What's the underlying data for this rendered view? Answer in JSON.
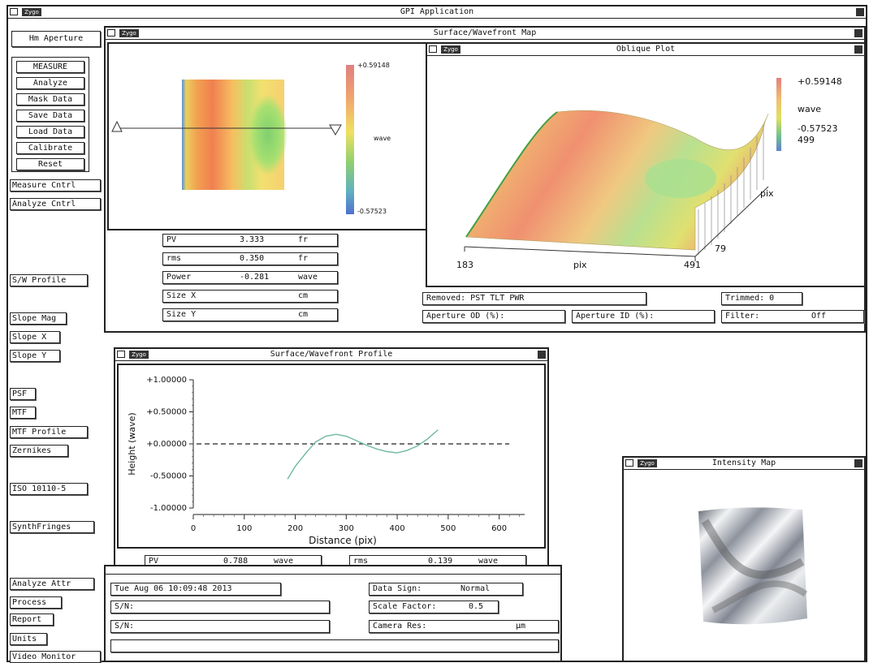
{
  "app": {
    "title": "GPI Application",
    "logo": "Zygo"
  },
  "left_panel": {
    "aperture_button": "Hm Aperture",
    "measure_group": [
      "MEASURE",
      "Analyze",
      "Mask Data",
      "Save Data",
      "Load Data",
      "Calibrate",
      "Reset"
    ],
    "control_buttons": [
      "Measure Cntrl",
      "Analyze Cntrl"
    ],
    "sw_profile": "S/W Profile",
    "slope_buttons": [
      "Slope Mag",
      "Slope X",
      "Slope Y"
    ],
    "analysis_buttons": [
      "PSF",
      "MTF",
      "MTF Profile",
      "Zernikes"
    ],
    "iso_button": "ISO 10110-5",
    "synth_button": "SynthFringes",
    "bottom_buttons": [
      "Analyze Attr",
      "Process",
      "Report",
      "Units",
      "Video Monitor"
    ]
  },
  "surface_map": {
    "title": "Surface/Wavefront Map",
    "scale_max": "+0.59148",
    "scale_min": "-0.57523",
    "scale_unit": "wave",
    "stats": [
      {
        "label": "PV",
        "value": "3.333",
        "unit": "fr"
      },
      {
        "label": "rms",
        "value": "0.350",
        "unit": "fr"
      },
      {
        "label": "Power",
        "value": "-0.281",
        "unit": "wave"
      },
      {
        "label": "Size X",
        "value": "",
        "unit": "cm"
      },
      {
        "label": "Size Y",
        "value": "",
        "unit": "cm"
      }
    ],
    "removed": "Removed: PST TLT PWR",
    "trimmed": "Trimmed:  0",
    "aperture_od": "Aperture OD (%):",
    "aperture_id": "Aperture ID (%):",
    "filter_label": "Filter:",
    "filter_value": "Off"
  },
  "oblique_plot": {
    "title": "Oblique Plot",
    "scale_max": "+0.59148",
    "scale_unit": "wave",
    "scale_min": "-0.57523",
    "y_max": "499",
    "y_axis_label": "pix",
    "y_min": "79",
    "x_min": "183",
    "x_axis_label": "pix",
    "x_max": "491"
  },
  "profile": {
    "title": "Surface/Wavefront Profile",
    "y_axis_label": "Height (wave)",
    "x_axis_label": "Distance (pix)",
    "y_ticks": [
      "+1.00000",
      "+0.50000",
      "+0.00000",
      "-0.50000",
      "-1.00000"
    ],
    "x_ticks": [
      "0",
      "100",
      "200",
      "300",
      "400",
      "500",
      "600"
    ],
    "pv_label": "PV",
    "pv_value": "0.788",
    "pv_unit": "wave",
    "rms_label": "rms",
    "rms_value": "0.139",
    "rms_unit": "wave"
  },
  "chart_data": {
    "type": "line",
    "title": "Surface/Wavefront Profile",
    "xlabel": "Distance (pix)",
    "ylabel": "Height (wave)",
    "xlim": [
      0,
      650
    ],
    "ylim": [
      -1.0,
      1.0
    ],
    "series": [
      {
        "x": [
          185,
          200,
          220,
          240,
          260,
          280,
          300,
          320,
          340,
          360,
          380,
          400,
          420,
          440,
          460,
          480
        ],
        "y": [
          -0.55,
          -0.35,
          -0.15,
          0.03,
          0.12,
          0.15,
          0.12,
          0.05,
          -0.02,
          -0.08,
          -0.12,
          -0.14,
          -0.1,
          -0.03,
          0.08,
          0.22
        ]
      }
    ],
    "reference_line": 0.0
  },
  "info": {
    "datetime": "Tue Aug 06 10:09:48 2013",
    "sn_label": "S/N:",
    "sn2_label": "S/N:",
    "data_sign_label": "Data Sign:",
    "data_sign_value": "Normal",
    "scale_factor_label": "Scale Factor:",
    "scale_factor_value": "0.5",
    "camera_res_label": "Camera Res:",
    "camera_res_unit": "µm"
  },
  "intensity_map": {
    "title": "Intensity Map"
  }
}
